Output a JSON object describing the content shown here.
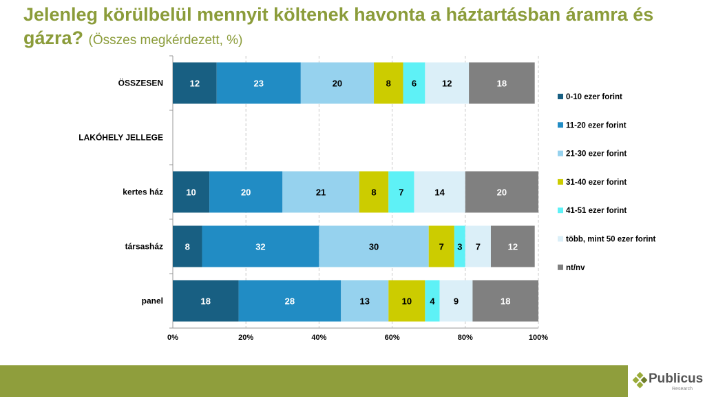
{
  "title": {
    "main": "Jelenleg körülbelül mennyit költenek havonta a háztartásban áramra és gázra?",
    "sub": "(Összes megkérdezett, %)"
  },
  "logo": {
    "name": "Publicus",
    "tagline": "Research"
  },
  "chart_data": {
    "type": "bar",
    "orientation": "horizontal-stacked-100",
    "categories": [
      "ÖSSZESEN",
      "LAKÓHELY JELLEGE",
      "kertes ház",
      "társasház",
      "panel"
    ],
    "series": [
      {
        "name": "0-10 ezer forint",
        "color": "#185f82",
        "values": [
          12,
          null,
          10,
          8,
          18
        ]
      },
      {
        "name": "11-20 ezer forint",
        "color": "#218cc4",
        "values": [
          23,
          null,
          20,
          32,
          28
        ]
      },
      {
        "name": "21-30 ezer forint",
        "color": "#96d2ee",
        "values": [
          20,
          null,
          21,
          30,
          13
        ]
      },
      {
        "name": "31-40 ezer forint",
        "color": "#cccc00",
        "values": [
          8,
          null,
          8,
          7,
          10
        ]
      },
      {
        "name": "41-51 ezer forint",
        "color": "#5ef1f6",
        "values": [
          6,
          null,
          7,
          3,
          4
        ]
      },
      {
        "name": "több, mint 50 ezer forint",
        "color": "#dbeff8",
        "values": [
          12,
          null,
          14,
          7,
          9
        ]
      },
      {
        "name": "nt/nv",
        "color": "#808080",
        "values": [
          18,
          null,
          20,
          12,
          18
        ]
      }
    ],
    "xticks": [
      "0%",
      "20%",
      "40%",
      "60%",
      "80%",
      "100%"
    ],
    "xlim": [
      0,
      100
    ],
    "grid": "vertical dashed",
    "legend": "right"
  }
}
